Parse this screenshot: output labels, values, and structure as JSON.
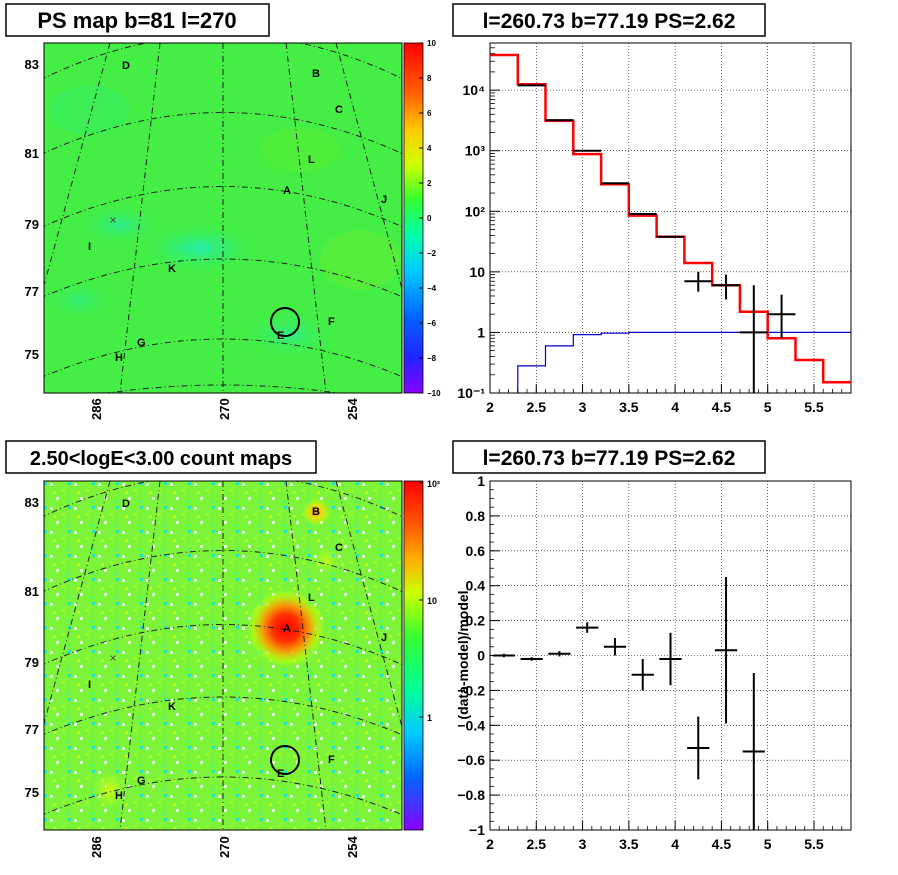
{
  "panels": {
    "ps_map": {
      "title": "PS map b=81 l=270",
      "y_ticks": [
        "83",
        "81",
        "79",
        "77",
        "75"
      ],
      "x_ticks": [
        "286",
        "270",
        "254"
      ],
      "colorbar": {
        "type": "linear",
        "range": [
          -10,
          10
        ],
        "labels": [
          "10",
          "8",
          "6",
          "4",
          "2",
          "0",
          "−2",
          "−4",
          "−6",
          "−8",
          "−10"
        ]
      },
      "sources": [
        "D",
        "B",
        "C",
        "L",
        "A",
        "J",
        "I",
        "K",
        "F",
        "E",
        "G",
        "H"
      ]
    },
    "count_map": {
      "title": "2.50<logE<3.00 count maps",
      "y_ticks": [
        "83",
        "81",
        "79",
        "77",
        "75"
      ],
      "x_ticks": [
        "286",
        "270",
        "254"
      ],
      "colorbar": {
        "type": "log",
        "labels": [
          "10²",
          "10",
          "1"
        ]
      },
      "sources": [
        "D",
        "B",
        "C",
        "L",
        "A",
        "J",
        "I",
        "K",
        "F",
        "E",
        "G",
        "H"
      ]
    },
    "spectrum": {
      "title": "l=260.73 b=77.19 PS=2.62",
      "x_ticks": [
        "2",
        "2.5",
        "3",
        "3.5",
        "4",
        "4.5",
        "5",
        "5.5"
      ],
      "y_ticks": [
        "10⁻¹",
        "1",
        "10",
        "10²",
        "10³",
        "10⁴"
      ]
    },
    "residual": {
      "title": "l=260.73 b=77.19 PS=2.62",
      "ylabel": "(data-model)/model",
      "x_ticks": [
        "2",
        "2.5",
        "3",
        "3.5",
        "4",
        "4.5",
        "5",
        "5.5"
      ],
      "y_ticks": [
        "1",
        "0.8",
        "0.6",
        "0.4",
        "0.2",
        "0",
        "−0.2",
        "−0.4",
        "−0.6",
        "−0.8",
        "−1"
      ]
    }
  },
  "chart_data": [
    {
      "type": "line",
      "title": "l=260.73 b=77.19 PS=2.62",
      "xlim": [
        2,
        5.9
      ],
      "ylim": [
        0.1,
        60000
      ],
      "log_y": true,
      "grid": true,
      "series": [
        {
          "color": "#ff0000",
          "bins": [
            2.0,
            2.3,
            2.6,
            2.9,
            3.2,
            3.5,
            3.8,
            4.1,
            4.4,
            4.7,
            5.0,
            5.3,
            5.6,
            5.9
          ],
          "values": [
            38000,
            12500,
            3100,
            880,
            280,
            85,
            38,
            14,
            6,
            2.2,
            0.8,
            0.35,
            0.15
          ]
        },
        {
          "color": "#0000cc",
          "bins": [
            2.0,
            2.3,
            2.6,
            2.9,
            3.2,
            3.5,
            3.8,
            4.1,
            4.4,
            4.7,
            5.0,
            5.3,
            5.6,
            5.9
          ],
          "values": [
            0.08,
            0.28,
            0.6,
            0.92,
            0.97,
            1.0,
            1.0,
            1.0,
            1.0,
            1.0,
            1.0,
            1.0,
            1.0
          ]
        }
      ],
      "points": {
        "color": "#000000",
        "x": [
          2.45,
          2.75,
          3.05,
          3.35,
          3.65,
          3.95,
          4.25,
          4.55,
          4.85,
          5.15
        ],
        "y": [
          12000,
          3200,
          1000,
          290,
          90,
          38,
          7,
          6,
          1,
          2
        ],
        "xerr": 0.15,
        "yerr_low": [
          0,
          0,
          0,
          0,
          0,
          0,
          2.3,
          2.5,
          0.9,
          1.2
        ],
        "yerr_high": [
          0,
          0,
          0,
          0,
          0,
          0,
          3,
          3,
          5,
          2.2
        ]
      }
    },
    {
      "type": "scatter",
      "title": "l=260.73 b=77.19 PS=2.62",
      "ylabel": "(data-model)/model",
      "xlim": [
        2,
        5.9
      ],
      "ylim": [
        -1,
        1
      ],
      "grid": true,
      "points": {
        "x": [
          2.15,
          2.45,
          2.75,
          3.05,
          3.35,
          3.65,
          3.95,
          4.25,
          4.55,
          4.85
        ],
        "y": [
          0.0,
          -0.02,
          0.01,
          0.16,
          0.05,
          -0.11,
          -0.02,
          -0.53,
          0.03,
          -0.55
        ],
        "xerr": 0.15,
        "yerr_low": [
          0.01,
          0.01,
          0.015,
          0.03,
          0.05,
          0.09,
          0.15,
          0.18,
          0.42,
          0.5
        ],
        "yerr_high": [
          0.01,
          0.01,
          0.015,
          0.03,
          0.05,
          0.09,
          0.15,
          0.18,
          0.42,
          0.45
        ]
      }
    }
  ]
}
